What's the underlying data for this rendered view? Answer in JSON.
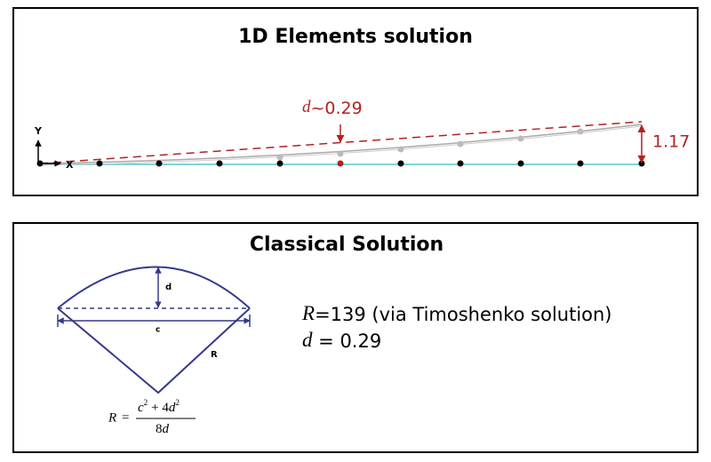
{
  "panel1": {
    "title": "1D Elements solution",
    "axis_y": "Y",
    "axis_x": "X",
    "deflection_label": {
      "symbol": "d",
      "text": "~0.29"
    },
    "tip_label": "1.17"
  },
  "panel2": {
    "title": "Classical Solution",
    "diagram_labels": {
      "d": "d",
      "c": "c",
      "R": "R"
    },
    "formula": {
      "lhs": "R",
      "eq": "=",
      "numerator": [
        "c",
        "2",
        "+ 4",
        "d",
        "2"
      ],
      "denominator": [
        "8",
        "d"
      ]
    },
    "result_lines": [
      {
        "symbol": "R",
        "text": "=139 (via Timoshenko solution)"
      },
      {
        "symbol": "d",
        "text": " = 0.29"
      }
    ]
  }
}
